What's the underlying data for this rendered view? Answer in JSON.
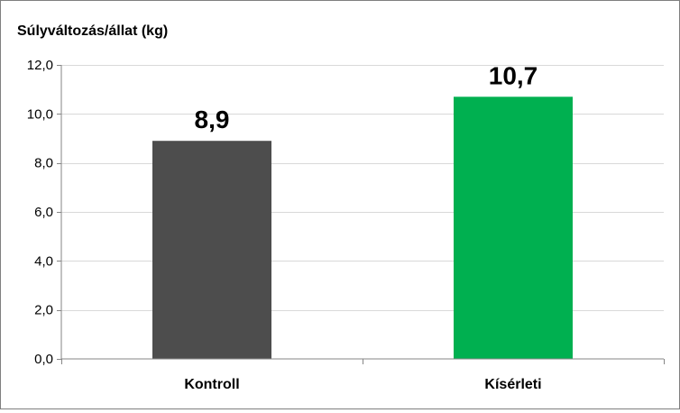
{
  "chart_data": {
    "type": "bar",
    "ylabel": "Súlyváltozás/állat (kg)",
    "categories": [
      "Kontroll",
      "Kísérleti"
    ],
    "values": [
      8.9,
      10.7
    ],
    "value_labels": [
      "8,9",
      "10,7"
    ],
    "bar_colors": [
      "#4d4d4d",
      "#00b050"
    ],
    "ylim": [
      0,
      12
    ],
    "y_ticks": [
      0,
      2,
      4,
      6,
      8,
      10,
      12
    ],
    "y_tick_labels": [
      "0,0",
      "2,0",
      "4,0",
      "6,0",
      "8,0",
      "10,0",
      "12,0"
    ],
    "grid": true,
    "legend": "none"
  }
}
